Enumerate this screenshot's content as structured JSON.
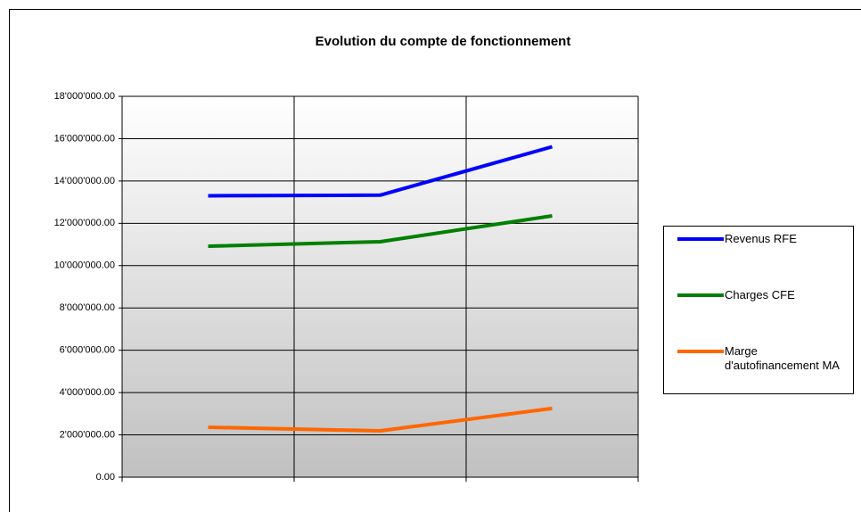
{
  "chart_data": {
    "type": "line",
    "title": "Evolution du compte de fonctionnement",
    "categories": [
      null,
      null,
      null
    ],
    "series": [
      {
        "name": "Revenus RFE",
        "color": "#0000ff",
        "values": [
          13300000,
          13330000,
          15620000
        ]
      },
      {
        "name": "Charges CFE",
        "color": "#008000",
        "values": [
          10920000,
          11130000,
          12350000
        ]
      },
      {
        "name": "Marge d'autofinancement MA",
        "color": "#ff6600",
        "values": [
          2360000,
          2190000,
          3250000
        ]
      }
    ],
    "ylim": [
      0,
      18000000
    ],
    "yticks": [
      {
        "value": 0,
        "label": "0.00"
      },
      {
        "value": 2000000,
        "label": "2'000'000.00"
      },
      {
        "value": 4000000,
        "label": "4'000'000.00"
      },
      {
        "value": 6000000,
        "label": "6'000'000.00"
      },
      {
        "value": 8000000,
        "label": "8'000'000.00"
      },
      {
        "value": 10000000,
        "label": "10'000'000.00"
      },
      {
        "value": 12000000,
        "label": "12'000'000.00"
      },
      {
        "value": 14000000,
        "label": "14'000'000.00"
      },
      {
        "value": 16000000,
        "label": "16'000'000.00"
      },
      {
        "value": 18000000,
        "label": "18'000'000.00"
      }
    ],
    "grid": true,
    "legend": "right"
  }
}
